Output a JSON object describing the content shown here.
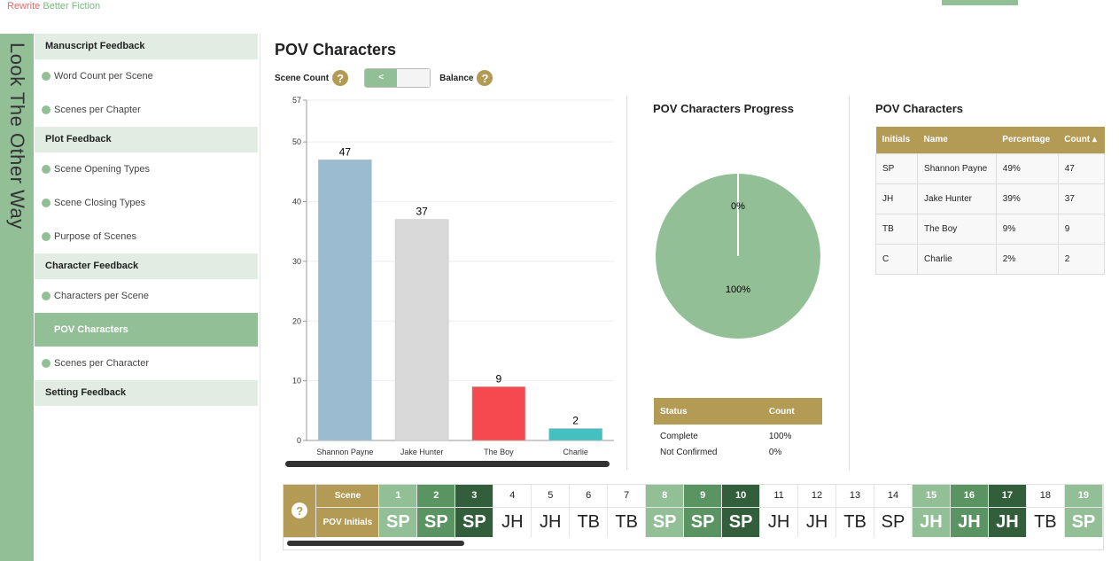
{
  "brand": {
    "part1": "Rewrite",
    "part2": "Better Fiction"
  },
  "project_title": "Look The Other Way",
  "nav": [
    {
      "type": "header",
      "label": "Manuscript Feedback"
    },
    {
      "type": "item",
      "label": "Word Count per Scene"
    },
    {
      "type": "item",
      "label": "Scenes per Chapter"
    },
    {
      "type": "header",
      "label": "Plot Feedback"
    },
    {
      "type": "item",
      "label": "Scene Opening Types"
    },
    {
      "type": "item",
      "label": "Scene Closing Types"
    },
    {
      "type": "item",
      "label": "Purpose of Scenes"
    },
    {
      "type": "header",
      "label": "Character Feedback"
    },
    {
      "type": "item",
      "label": "Characters per Scene"
    },
    {
      "type": "selected",
      "label": "POV Characters"
    },
    {
      "type": "item",
      "label": "Scenes per Character"
    },
    {
      "type": "header",
      "label": "Setting Feedback"
    }
  ],
  "page_title": "POV Characters",
  "toggle": {
    "left_label": "Scene Count",
    "right_label": "Balance",
    "button": "<",
    "help": "?"
  },
  "chart_data": {
    "type": "bar",
    "categories": [
      "Shannon Payne",
      "Jake Hunter",
      "The Boy",
      "Charlie"
    ],
    "values": [
      47,
      37,
      9,
      2
    ],
    "colors": [
      "#9bbcd0",
      "#d9d9d9",
      "#f44a4f",
      "#45bfbf"
    ],
    "yticks": [
      0,
      10,
      20,
      30,
      40,
      50,
      57
    ],
    "ylim": [
      0,
      57
    ],
    "grid": true
  },
  "progress": {
    "title": "POV Characters Progress",
    "pie": {
      "complete_pct": 100,
      "not_confirmed_pct": 0,
      "label_complete": "100%",
      "label_not": "0%",
      "color": "#93bf97"
    },
    "status_headers": [
      "Status",
      "Count"
    ],
    "status_rows": [
      [
        "Complete",
        "100%"
      ],
      [
        "Not Confirmed",
        "0%"
      ]
    ]
  },
  "pov_table": {
    "title": "POV Characters",
    "headers": [
      "Initials",
      "Name",
      "Percentage",
      "Count ▴"
    ],
    "rows": [
      [
        "SP",
        "Shannon Payne",
        "49%",
        "47"
      ],
      [
        "JH",
        "Jake Hunter",
        "39%",
        "37"
      ],
      [
        "TB",
        "The Boy",
        "9%",
        "9"
      ],
      [
        "C",
        "Charlie",
        "2%",
        "2"
      ]
    ]
  },
  "scenes": {
    "help": "?",
    "row1_label": "Scene",
    "row2_label": "POV Initials",
    "items": [
      {
        "n": "1",
        "pov": "SP",
        "shade": 1
      },
      {
        "n": "2",
        "pov": "SP",
        "shade": 2
      },
      {
        "n": "3",
        "pov": "SP",
        "shade": 3
      },
      {
        "n": "4",
        "pov": "JH",
        "shade": 0
      },
      {
        "n": "5",
        "pov": "JH",
        "shade": 0
      },
      {
        "n": "6",
        "pov": "TB",
        "shade": 0
      },
      {
        "n": "7",
        "pov": "TB",
        "shade": 0
      },
      {
        "n": "8",
        "pov": "SP",
        "shade": 1
      },
      {
        "n": "9",
        "pov": "SP",
        "shade": 2
      },
      {
        "n": "10",
        "pov": "SP",
        "shade": 3
      },
      {
        "n": "11",
        "pov": "JH",
        "shade": 0
      },
      {
        "n": "12",
        "pov": "JH",
        "shade": 0
      },
      {
        "n": "13",
        "pov": "TB",
        "shade": 0
      },
      {
        "n": "14",
        "pov": "SP",
        "shade": 0
      },
      {
        "n": "15",
        "pov": "JH",
        "shade": 1
      },
      {
        "n": "16",
        "pov": "JH",
        "shade": 2
      },
      {
        "n": "17",
        "pov": "JH",
        "shade": 3
      },
      {
        "n": "18",
        "pov": "TB",
        "shade": 0
      },
      {
        "n": "19",
        "pov": "SP",
        "shade": 1
      }
    ]
  }
}
